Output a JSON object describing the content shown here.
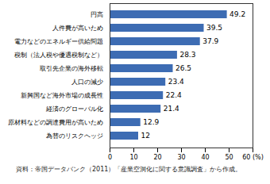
{
  "chart_data": {
    "type": "bar",
    "orientation": "horizontal",
    "categories": [
      "円高",
      "人件費が高いため",
      "電力などのエネルギー供給問題",
      "税制（法人税や優遇税制など）",
      "取引先企業の海外移転",
      "人口の減少",
      "新興国など海外市場の成長性",
      "経済のグローバル化",
      "原材料などの調達費用が高いため",
      "為替のリスクヘッジ"
    ],
    "values": [
      49.2,
      39.5,
      37.9,
      28.3,
      26.5,
      23.4,
      22.4,
      21.4,
      12.9,
      12
    ],
    "color": "#3d6cb3",
    "xlim": [
      0,
      60
    ],
    "xticks": [
      0,
      10,
      20,
      30,
      40,
      50,
      {
        "value": 60,
        "label": "60 (%)"
      }
    ],
    "data_labels": true,
    "grid": false,
    "caption": "資料：帝国データバンク（2011）「産業空洞化に関する意識調査」から作成。"
  }
}
